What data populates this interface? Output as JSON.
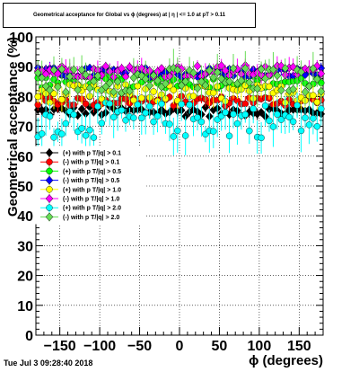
{
  "chart_data": {
    "type": "scatter",
    "title": "Geometrical acceptance for Global vs ϕ (degrees) at | η | <= 1.0 at pT > 0.11",
    "xlabel": "ϕ (degrees)",
    "ylabel": "Geometrical acceptance (%)",
    "xlim": [
      -180,
      180
    ],
    "ylim": [
      0,
      100
    ],
    "xticks": [
      -150,
      -100,
      -50,
      0,
      50,
      100,
      150
    ],
    "yticks": [
      0,
      10,
      20,
      30,
      40,
      50,
      60,
      70,
      80,
      90,
      100
    ],
    "grid": true,
    "legend_position": "left, middle",
    "bins": 72,
    "series": [
      {
        "name": "(+) with p T/|q| > 0.1",
        "color": "#000000",
        "marker": "diamond",
        "level": 75.0,
        "spread": 1.0,
        "err": 1.5
      },
      {
        "name": "(-) with p T/|q| > 0.1",
        "color": "#ff0000",
        "marker": "circle",
        "level": 78.5,
        "spread": 1.0,
        "err": 1.8
      },
      {
        "name": "(+) with p T/|q| > 0.5",
        "color": "#00ff00",
        "marker": "circle",
        "level": 85.0,
        "spread": 1.3,
        "err": 2.0
      },
      {
        "name": "(-) with p T/|q| > 0.5",
        "color": "#0000ff",
        "marker": "diamond",
        "level": 88.0,
        "spread": 1.0,
        "err": 1.5
      },
      {
        "name": "(+) with p T/|q| > 1.0",
        "color": "#ffff00",
        "marker": "circle",
        "level": 81.0,
        "spread": 1.8,
        "err": 3.5
      },
      {
        "name": "(-) with p T/|q| > 1.0",
        "color": "#ff00ff",
        "marker": "diamond",
        "level": 88.5,
        "spread": 1.2,
        "err": 2.5
      },
      {
        "name": "(+) with p T/|q| > 2.0",
        "color": "#00ffff",
        "marker": "circle",
        "level": 72.0,
        "spread": 3.5,
        "err": 5.0
      },
      {
        "name": "(-) with p T/|q| > 2.0",
        "color": "#66dd55",
        "marker": "diamond",
        "level": 85.5,
        "spread": 2.5,
        "err": 4.5
      }
    ]
  },
  "footer": {
    "datestamp": "Tue Jul  3 09:28:40 2018"
  }
}
